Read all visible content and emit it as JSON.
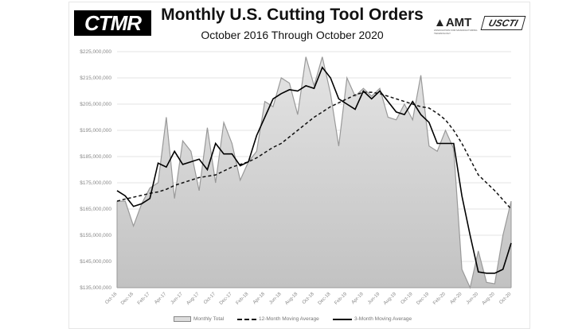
{
  "header": {
    "logo_left": "CTMR",
    "logo_right_1": "AMT",
    "logo_right_1_sub": "ASSOCIATION FOR MANUFACTURING TECHNOLOGY",
    "logo_right_2": "USCTI"
  },
  "chart_data": {
    "type": "area",
    "title": "Monthly U.S. Cutting Tool Orders",
    "subtitle": "October 2016 Through October 2020",
    "xlabel": "",
    "ylabel": "",
    "ylim": [
      135000000,
      225000000
    ],
    "yticks": [
      "$135,000,000",
      "$145,000,000",
      "$155,000,000",
      "$165,000,000",
      "$175,000,000",
      "$185,000,000",
      "$195,000,000",
      "$205,000,000",
      "$215,000,000",
      "$225,000,000"
    ],
    "xticks": [
      "Oct-16",
      "Dec-16",
      "Feb-17",
      "Apr-17",
      "Jun-17",
      "Aug-17",
      "Oct-17",
      "Dec-17",
      "Feb-18",
      "Apr-18",
      "Jun-18",
      "Aug-18",
      "Oct-18",
      "Dec-18",
      "Feb-19",
      "Apr-19",
      "Jun-19",
      "Aug-19",
      "Oct-19",
      "Dec-19",
      "Feb-20",
      "Apr-20",
      "Jun-20",
      "Aug-20",
      "Oct-20"
    ],
    "grid": true,
    "legend_position": "bottom",
    "unit": "millions USD (values)",
    "series": [
      {
        "name": "Monthly Total",
        "style": "area",
        "color": "#999999",
        "values": [
          168,
          168,
          158.5,
          167,
          173,
          175,
          200,
          169,
          191,
          187,
          172,
          196,
          175,
          198,
          190,
          176,
          183,
          187,
          206,
          204,
          215,
          213,
          201,
          223,
          212,
          223,
          209,
          189,
          215,
          208,
          211,
          208,
          211,
          200,
          199,
          205,
          199,
          216,
          189,
          187,
          195,
          188,
          142,
          135,
          149,
          137,
          136.5,
          155,
          168
        ]
      },
      {
        "name": "12-Month Moving Average",
        "style": "dashed",
        "color": "#111111",
        "values": [
          168,
          168.8,
          169.5,
          170.2,
          171,
          171.5,
          172.5,
          174,
          175,
          176,
          177,
          177.5,
          178,
          179.5,
          181,
          182,
          183,
          184.5,
          186.5,
          188.5,
          190,
          192.5,
          195,
          197.5,
          200,
          202,
          204,
          205.5,
          207,
          208.5,
          209.5,
          209.5,
          209,
          208,
          207,
          206,
          205,
          204,
          203.5,
          201.5,
          199,
          195,
          190,
          184,
          178,
          175,
          172,
          168.5,
          165
        ]
      },
      {
        "name": "3-Month Moving Average",
        "style": "solid",
        "color": "#000000",
        "values": [
          172,
          170,
          166,
          167,
          169,
          182.5,
          181,
          187,
          182,
          183,
          184,
          180,
          190,
          186,
          186,
          181.5,
          183,
          193,
          200,
          207,
          209,
          210.5,
          210,
          212,
          211,
          219,
          215,
          207,
          205,
          203,
          210,
          207,
          210,
          206,
          202,
          201,
          206,
          201,
          198,
          190,
          190,
          190,
          170,
          155,
          141,
          140.5,
          140.5,
          142,
          152
        ]
      }
    ]
  }
}
